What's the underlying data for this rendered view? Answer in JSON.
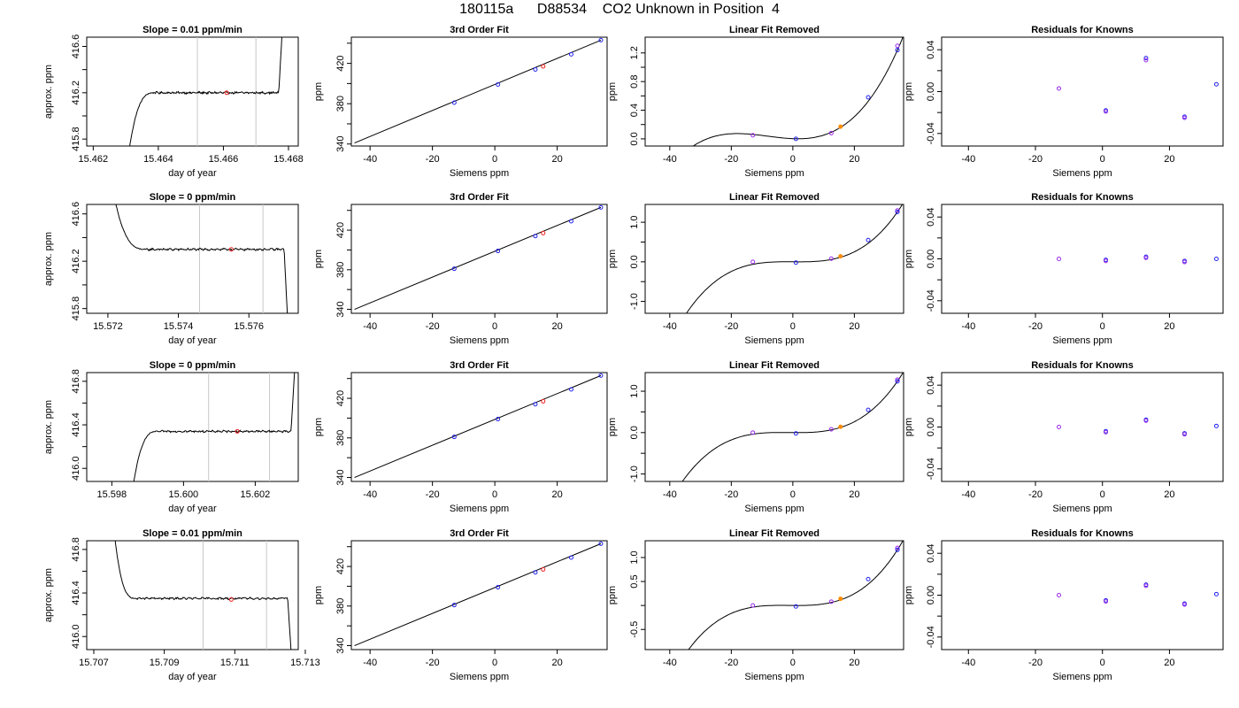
{
  "page_title": "180115a      D88534    CO2 Unknown in Position  4",
  "colors": {
    "trace": "#000000",
    "gate_line": "#c8c8c8",
    "known_marker": "#2222ee",
    "known_marker_alt": "#9a2be8",
    "unknown_marker": "#ee2222",
    "unknown_marker_resid": "#ff8c00"
  },
  "chart_data": [
    {
      "type": "line",
      "row": 0,
      "col": 0,
      "title": "Slope =  0.01  ppm/min",
      "xlabel": "day of year",
      "ylabel": "approx. ppm",
      "xlim": [
        15.4618,
        15.4683
      ],
      "ylim": [
        415.74,
        416.68
      ],
      "xticks": [
        15.462,
        15.464,
        15.466,
        15.468
      ],
      "xticklabels": [
        "15.462",
        "15.464",
        "15.466",
        "15.468"
      ],
      "yticks": [
        415.8,
        416.0,
        416.2,
        416.4,
        416.6
      ],
      "yticklabels": [
        "415.8",
        "",
        "416.2",
        "",
        "416.6"
      ],
      "gates": [
        15.4652,
        15.467
      ],
      "trace": {
        "start": 15.4631,
        "rise_end": 15.4639,
        "plateau_end": 15.4677,
        "end": 15.4678,
        "low": 415.7,
        "plateau": 416.2,
        "high": 416.7,
        "noise": 0.007,
        "shape": "rise"
      },
      "marker": {
        "x": 15.4661,
        "y": 416.2
      }
    },
    {
      "type": "line",
      "row": 1,
      "col": 0,
      "title": "Slope =  0  ppm/min",
      "xlabel": "day of year",
      "ylabel": "approx. ppm",
      "xlim": [
        15.5714,
        15.5774
      ],
      "ylim": [
        415.76,
        416.68
      ],
      "xticks": [
        15.572,
        15.574,
        15.576
      ],
      "xticklabels": [
        "15.572",
        "15.574",
        "15.576"
      ],
      "yticks": [
        415.8,
        416.0,
        416.2,
        416.4,
        416.6
      ],
      "yticklabels": [
        "415.8",
        "",
        "416.2",
        "",
        "416.6"
      ],
      "gates": [
        15.5746,
        15.5764
      ],
      "trace": {
        "start": 15.5722,
        "rise_end": 15.5731,
        "plateau_end": 15.577,
        "end": 15.5771,
        "low": 415.7,
        "plateau": 416.3,
        "high": 416.72,
        "noise": 0.007,
        "shape": "decay"
      },
      "marker": {
        "x": 15.5755,
        "y": 416.3
      }
    },
    {
      "type": "line",
      "row": 2,
      "col": 0,
      "title": "Slope =  0  ppm/min",
      "xlabel": "day of year",
      "ylabel": "approx. ppm",
      "xlim": [
        15.5973,
        15.6032
      ],
      "ylim": [
        415.88,
        416.88
      ],
      "xticks": [
        15.598,
        15.6,
        15.602
      ],
      "xticklabels": [
        "15.598",
        "15.600",
        "15.602"
      ],
      "yticks": [
        416.0,
        416.2,
        416.4,
        416.6,
        416.8
      ],
      "yticklabels": [
        "416.0",
        "",
        "416.4",
        "",
        "416.8"
      ],
      "gates": [
        15.6007,
        15.6024
      ],
      "trace": {
        "start": 15.5986,
        "rise_end": 15.5993,
        "plateau_end": 15.603,
        "end": 15.6031,
        "low": 415.85,
        "plateau": 416.34,
        "high": 416.9,
        "noise": 0.007,
        "shape": "rise"
      },
      "marker": {
        "x": 15.6015,
        "y": 416.34
      }
    },
    {
      "type": "line",
      "row": 3,
      "col": 0,
      "title": "Slope =  0.01  ppm/min",
      "xlabel": "day of year",
      "ylabel": "approx. ppm",
      "xlim": [
        15.7068,
        15.7128
      ],
      "ylim": [
        415.88,
        416.88
      ],
      "xticks": [
        15.707,
        15.709,
        15.711,
        15.713
      ],
      "xticklabels": [
        "15.707",
        "15.709",
        "15.711",
        "15.713"
      ],
      "yticks": [
        416.0,
        416.2,
        416.4,
        416.6,
        416.8
      ],
      "yticklabels": [
        "416.0",
        "",
        "416.4",
        "",
        "416.8"
      ],
      "gates": [
        15.7101,
        15.7119
      ],
      "trace": {
        "start": 15.7076,
        "rise_end": 15.7082,
        "plateau_end": 15.7125,
        "end": 15.7126,
        "low": 415.85,
        "plateau": 416.35,
        "high": 416.9,
        "noise": 0.007,
        "shape": "decay"
      },
      "marker": {
        "x": 15.7109,
        "y": 416.34
      }
    },
    {
      "type": "scatter",
      "row": 0,
      "col": 1,
      "title": "3rd Order Fit",
      "xlabel": "Siemens ppm",
      "ylabel": "ppm",
      "xlim": [
        -46,
        36
      ],
      "ylim": [
        338,
        446
      ],
      "xticks": [
        -40,
        -20,
        0,
        20
      ],
      "xticklabels": [
        "-40",
        "-20",
        "0",
        "20"
      ],
      "yticks": [
        340,
        360,
        380,
        400,
        420,
        440
      ],
      "yticklabels": [
        "340",
        "",
        "380",
        "",
        "420",
        ""
      ],
      "line": {
        "x": [
          -45,
          34
        ],
        "y": [
          341,
          443
        ]
      },
      "knowns": {
        "x": [
          -13,
          1,
          13,
          24.5,
          34
        ],
        "y": [
          381,
          399,
          414,
          429,
          443
        ]
      },
      "unknown": {
        "x": [
          15.5
        ],
        "y": [
          417
        ]
      }
    },
    {
      "type": "scatter",
      "row": 1,
      "col": 1,
      "title": "3rd Order Fit",
      "xlabel": "Siemens ppm",
      "ylabel": "ppm",
      "xlim": [
        -46,
        36
      ],
      "ylim": [
        336,
        446
      ],
      "xticks": [
        -40,
        -20,
        0,
        20
      ],
      "xticklabels": [
        "-40",
        "-20",
        "0",
        "20"
      ],
      "yticks": [
        340,
        360,
        380,
        400,
        420,
        440
      ],
      "yticklabels": [
        "340",
        "",
        "380",
        "",
        "420",
        ""
      ],
      "line": {
        "x": [
          -45,
          34
        ],
        "y": [
          340,
          443
        ]
      },
      "knowns": {
        "x": [
          -13,
          1,
          13,
          24.5,
          34
        ],
        "y": [
          381,
          399,
          414,
          429,
          443
        ]
      },
      "unknown": {
        "x": [
          15.5
        ],
        "y": [
          417
        ]
      }
    },
    {
      "type": "scatter",
      "row": 2,
      "col": 1,
      "title": "3rd Order Fit",
      "xlabel": "Siemens ppm",
      "ylabel": "ppm",
      "xlim": [
        -46,
        36
      ],
      "ylim": [
        336,
        446
      ],
      "xticks": [
        -40,
        -20,
        0,
        20
      ],
      "xticklabels": [
        "-40",
        "-20",
        "0",
        "20"
      ],
      "yticks": [
        340,
        360,
        380,
        400,
        420,
        440
      ],
      "yticklabels": [
        "340",
        "",
        "380",
        "",
        "420",
        ""
      ],
      "line": {
        "x": [
          -45,
          34
        ],
        "y": [
          340,
          443
        ]
      },
      "knowns": {
        "x": [
          -13,
          1,
          13,
          24.5,
          34
        ],
        "y": [
          381,
          399,
          414,
          429,
          443
        ]
      },
      "unknown": {
        "x": [
          15.5
        ],
        "y": [
          417
        ]
      }
    },
    {
      "type": "scatter",
      "row": 3,
      "col": 1,
      "title": "3rd Order Fit",
      "xlabel": "Siemens ppm",
      "ylabel": "ppm",
      "xlim": [
        -46,
        36
      ],
      "ylim": [
        336,
        446
      ],
      "xticks": [
        -40,
        -20,
        0,
        20
      ],
      "xticklabels": [
        "-40",
        "-20",
        "0",
        "20"
      ],
      "yticks": [
        340,
        360,
        380,
        400,
        420,
        440
      ],
      "yticklabels": [
        "340",
        "",
        "380",
        "",
        "420",
        ""
      ],
      "line": {
        "x": [
          -45,
          34
        ],
        "y": [
          340,
          443
        ]
      },
      "knowns": {
        "x": [
          -13,
          1,
          13,
          24.5,
          34
        ],
        "y": [
          381,
          399,
          414,
          429,
          443
        ]
      },
      "unknown": {
        "x": [
          15.5
        ],
        "y": [
          417
        ]
      }
    },
    {
      "type": "scatter",
      "row": 0,
      "col": 2,
      "title": "Linear Fit Removed",
      "xlabel": "Siemens ppm",
      "ylabel": "ppm",
      "xlim": [
        -48,
        36
      ],
      "ylim": [
        -0.1,
        1.42
      ],
      "xticks": [
        -40,
        -20,
        0,
        20
      ],
      "xticklabels": [
        "-40",
        "-20",
        "0",
        "20"
      ],
      "yticks": [
        0.0,
        0.2,
        0.4,
        0.6,
        0.8,
        1.0,
        1.2
      ],
      "yticklabels": [
        "0.0",
        "",
        "0.4",
        "",
        "0.8",
        "",
        "1.2"
      ],
      "curve": {
        "coeffs": [
          4e-05,
          0.0011,
          -0.0015,
          0.0032
        ],
        "x0": 1,
        "xmin": -45,
        "xmax": 36
      },
      "knowns": {
        "x": [
          -13,
          1,
          12.5,
          24.5,
          34,
          34
        ],
        "y": [
          0.05,
          0.0,
          0.08,
          0.58,
          1.3,
          1.24
        ]
      },
      "unknown": {
        "x": [
          15.5
        ],
        "y": [
          0.17
        ]
      }
    },
    {
      "type": "scatter",
      "row": 1,
      "col": 2,
      "title": "Linear Fit Removed",
      "xlabel": "Siemens ppm",
      "ylabel": "ppm",
      "xlim": [
        -48,
        36
      ],
      "ylim": [
        -1.3,
        1.45
      ],
      "xticks": [
        -40,
        -20,
        0,
        20
      ],
      "xticklabels": [
        "-40",
        "-20",
        "0",
        "20"
      ],
      "yticks": [
        -1.0,
        -0.5,
        0.0,
        0.5,
        1.0
      ],
      "yticklabels": [
        "-1.0",
        "",
        "0.0",
        "",
        "1.0"
      ],
      "curve": {
        "coeffs": [
          3e-05,
          0.0001,
          -0.0003,
          0.0
        ],
        "x0": 1,
        "xmin": -45,
        "xmax": 36
      },
      "knowns": {
        "x": [
          -13,
          1,
          12.5,
          24.5,
          34,
          34
        ],
        "y": [
          0.0,
          -0.02,
          0.08,
          0.55,
          1.3,
          1.26
        ]
      },
      "unknown": {
        "x": [
          15.5
        ],
        "y": [
          0.14
        ]
      }
    },
    {
      "type": "scatter",
      "row": 2,
      "col": 2,
      "title": "Linear Fit Removed",
      "xlabel": "Siemens ppm",
      "ylabel": "ppm",
      "xlim": [
        -48,
        36
      ],
      "ylim": [
        -1.18,
        1.45
      ],
      "xticks": [
        -40,
        -20,
        0,
        20
      ],
      "xticklabels": [
        "-40",
        "-20",
        "0",
        "20"
      ],
      "yticks": [
        -1.0,
        -0.5,
        0.0,
        0.5,
        1.0
      ],
      "yticklabels": [
        "-1.0",
        "",
        "0.0",
        "",
        "1.0"
      ],
      "curve": {
        "coeffs": [
          3e-05,
          0.0002,
          -0.0003,
          0.0
        ],
        "x0": 1,
        "xmin": -45,
        "xmax": 36
      },
      "knowns": {
        "x": [
          -13,
          1,
          12.5,
          24.5,
          34,
          34
        ],
        "y": [
          0.0,
          -0.02,
          0.08,
          0.55,
          1.28,
          1.24
        ]
      },
      "unknown": {
        "x": [
          15.5
        ],
        "y": [
          0.14
        ]
      }
    },
    {
      "type": "scatter",
      "row": 3,
      "col": 2,
      "title": "Linear Fit Removed",
      "xlabel": "Siemens ppm",
      "ylabel": "ppm",
      "xlim": [
        -48,
        36
      ],
      "ylim": [
        -0.92,
        1.35
      ],
      "xticks": [
        -40,
        -20,
        0,
        20
      ],
      "xticklabels": [
        "-40",
        "-20",
        "0",
        "20"
      ],
      "yticks": [
        -0.5,
        0.0,
        0.5,
        1.0
      ],
      "yticklabels": [
        "-0.5",
        "",
        "0.5",
        "1.0"
      ],
      "curve": {
        "coeffs": [
          3e-05,
          0.0002,
          -0.0003,
          0.0
        ],
        "x0": 1,
        "xmin": -45,
        "xmax": 36
      },
      "knowns": {
        "x": [
          -13,
          1,
          12.5,
          24.5,
          34,
          34
        ],
        "y": [
          0.0,
          -0.02,
          0.08,
          0.55,
          1.2,
          1.16
        ]
      },
      "unknown": {
        "x": [
          15.5
        ],
        "y": [
          0.14
        ]
      }
    },
    {
      "type": "scatter",
      "row": 0,
      "col": 3,
      "title": "Residuals for Knowns",
      "xlabel": "Siemens ppm",
      "ylabel": "ppm",
      "xlim": [
        -48,
        36
      ],
      "ylim": [
        -0.052,
        0.052
      ],
      "xticks": [
        -40,
        -20,
        0,
        20
      ],
      "xticklabels": [
        "-40",
        "-20",
        "0",
        "20"
      ],
      "yticks": [
        -0.04,
        -0.02,
        0.0,
        0.02,
        0.04
      ],
      "yticklabels": [
        "-0.04",
        "",
        "0.00",
        "",
        "0.04"
      ],
      "knowns": {
        "x": [
          -13,
          1,
          1,
          13,
          13,
          24.5,
          24.5,
          34
        ],
        "y": [
          0.003,
          -0.018,
          -0.019,
          0.032,
          0.03,
          -0.024,
          -0.025,
          0.007
        ]
      }
    },
    {
      "type": "scatter",
      "row": 1,
      "col": 3,
      "title": "Residuals for Knowns",
      "xlabel": "Siemens ppm",
      "ylabel": "ppm",
      "xlim": [
        -48,
        36
      ],
      "ylim": [
        -0.052,
        0.052
      ],
      "xticks": [
        -40,
        -20,
        0,
        20
      ],
      "xticklabels": [
        "-40",
        "-20",
        "0",
        "20"
      ],
      "yticks": [
        -0.04,
        -0.02,
        0.0,
        0.02,
        0.04
      ],
      "yticklabels": [
        "-0.04",
        "",
        "0.00",
        "",
        "0.04"
      ],
      "knowns": {
        "x": [
          -13,
          1,
          1,
          13,
          13,
          24.5,
          24.5,
          34
        ],
        "y": [
          0.0,
          -0.001,
          -0.002,
          0.002,
          0.001,
          -0.002,
          -0.003,
          0.0
        ]
      }
    },
    {
      "type": "scatter",
      "row": 2,
      "col": 3,
      "title": "Residuals for Knowns",
      "xlabel": "Siemens ppm",
      "ylabel": "ppm",
      "xlim": [
        -48,
        36
      ],
      "ylim": [
        -0.052,
        0.052
      ],
      "xticks": [
        -40,
        -20,
        0,
        20
      ],
      "xticklabels": [
        "-40",
        "-20",
        "0",
        "20"
      ],
      "yticks": [
        -0.04,
        -0.02,
        0.0,
        0.02,
        0.04
      ],
      "yticklabels": [
        "-0.04",
        "",
        "0.00",
        "",
        "0.04"
      ],
      "knowns": {
        "x": [
          -13,
          1,
          1,
          13,
          13,
          24.5,
          24.5,
          34
        ],
        "y": [
          0.0,
          -0.004,
          -0.005,
          0.007,
          0.006,
          -0.006,
          -0.007,
          0.001
        ]
      }
    },
    {
      "type": "scatter",
      "row": 3,
      "col": 3,
      "title": "Residuals for Knowns",
      "xlabel": "Siemens ppm",
      "ylabel": "ppm",
      "xlim": [
        -48,
        36
      ],
      "ylim": [
        -0.052,
        0.052
      ],
      "xticks": [
        -40,
        -20,
        0,
        20
      ],
      "xticklabels": [
        "-40",
        "-20",
        "0",
        "20"
      ],
      "yticks": [
        -0.04,
        -0.02,
        0.0,
        0.02,
        0.04
      ],
      "yticklabels": [
        "-0.04",
        "",
        "0.00",
        "",
        "0.04"
      ],
      "knowns": {
        "x": [
          -13,
          1,
          1,
          13,
          13,
          24.5,
          24.5,
          34
        ],
        "y": [
          0.0,
          -0.005,
          -0.006,
          0.01,
          0.009,
          -0.008,
          -0.009,
          0.001
        ]
      }
    }
  ]
}
